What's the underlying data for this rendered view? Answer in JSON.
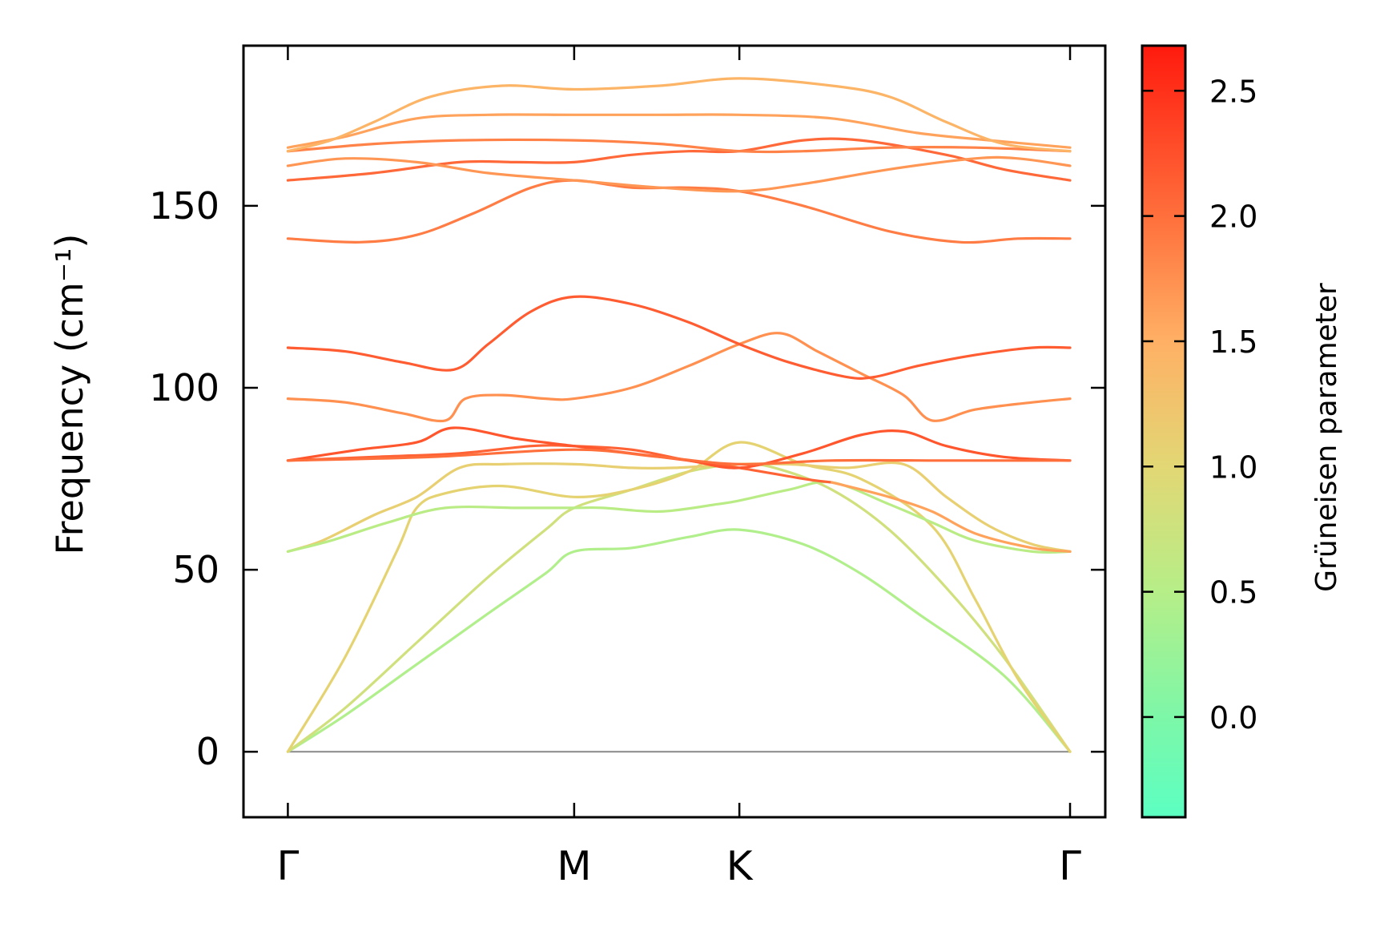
{
  "chart_data": {
    "type": "line",
    "title": "",
    "xlabel": "",
    "ylabel": "Frequency (cm⁻¹)",
    "ylim": [
      -18,
      194
    ],
    "grid": false,
    "x_ticks": [
      {
        "label": "Γ",
        "pos": 0.0
      },
      {
        "label": "M",
        "pos": 1.0
      },
      {
        "label": "K",
        "pos": 1.577
      },
      {
        "label": "Γ",
        "pos": 2.732
      }
    ],
    "y_ticks": [
      0,
      50,
      100,
      150
    ],
    "colorbar": {
      "label": "Grüneisen parameter",
      "range": [
        -0.4,
        2.68
      ],
      "ticks": [
        0.0,
        0.5,
        1.0,
        1.5,
        2.0,
        2.5
      ],
      "tick_labels": [
        "0.0",
        "0.5",
        "1.0",
        "1.5",
        "2.0",
        "2.5"
      ],
      "colormap": [
        {
          "value": -0.4,
          "color": "#5cffc2"
        },
        {
          "value": 0.0,
          "color": "#7df7a8"
        },
        {
          "value": 0.5,
          "color": "#b6ee88"
        },
        {
          "value": 1.0,
          "color": "#e2d774"
        },
        {
          "value": 1.5,
          "color": "#ffb064"
        },
        {
          "value": 2.0,
          "color": "#ff6f3c"
        },
        {
          "value": 2.68,
          "color": "#ff1a0e"
        }
      ]
    },
    "series": [
      {
        "gamma": 0.45,
        "points": [
          [
            0.0,
            0
          ],
          [
            0.2,
            10
          ],
          [
            0.45,
            24
          ],
          [
            0.7,
            38
          ],
          [
            0.9,
            49
          ],
          [
            1.0,
            55
          ],
          [
            1.2,
            56
          ],
          [
            1.4,
            59
          ],
          [
            1.577,
            61
          ],
          [
            1.8,
            57
          ],
          [
            2.0,
            49
          ],
          [
            2.2,
            38
          ],
          [
            2.5,
            21
          ],
          [
            2.732,
            0
          ]
        ]
      },
      {
        "gamma": 0.8,
        "points": [
          [
            0.0,
            0
          ],
          [
            0.2,
            12
          ],
          [
            0.45,
            30
          ],
          [
            0.7,
            48
          ],
          [
            0.9,
            61
          ],
          [
            1.0,
            67
          ],
          [
            1.2,
            72
          ],
          [
            1.4,
            77
          ],
          [
            1.577,
            79
          ],
          [
            1.7,
            78
          ],
          [
            1.9,
            72
          ],
          [
            2.1,
            61
          ],
          [
            2.3,
            45
          ],
          [
            2.5,
            26
          ],
          [
            2.732,
            0
          ]
        ]
      },
      {
        "gamma": 1.05,
        "points": [
          [
            0.0,
            0
          ],
          [
            0.2,
            26
          ],
          [
            0.38,
            55
          ],
          [
            0.45,
            67
          ],
          [
            0.55,
            71
          ],
          [
            0.75,
            73
          ],
          [
            1.0,
            70
          ],
          [
            1.2,
            72
          ],
          [
            1.4,
            77
          ],
          [
            1.577,
            85
          ],
          [
            1.8,
            79
          ],
          [
            2.0,
            75
          ],
          [
            2.25,
            62
          ],
          [
            2.4,
            42
          ],
          [
            2.55,
            20
          ],
          [
            2.732,
            0
          ]
        ]
      },
      {
        "gamma": 1.1,
        "points": [
          [
            0.0,
            55
          ],
          [
            0.12,
            58
          ],
          [
            0.3,
            65
          ],
          [
            0.45,
            70
          ],
          [
            0.6,
            78
          ],
          [
            0.75,
            79
          ],
          [
            1.0,
            79
          ],
          [
            1.2,
            78
          ],
          [
            1.35,
            78
          ],
          [
            1.577,
            79
          ],
          [
            1.75,
            79
          ],
          [
            1.95,
            78
          ],
          [
            2.15,
            79
          ],
          [
            2.3,
            70
          ],
          [
            2.45,
            62
          ],
          [
            2.6,
            57
          ],
          [
            2.732,
            55
          ]
        ]
      },
      {
        "gamma": 0.55,
        "points": [
          [
            0.0,
            55
          ],
          [
            0.15,
            58
          ],
          [
            0.35,
            63
          ],
          [
            0.55,
            67
          ],
          [
            0.8,
            67
          ],
          [
            1.0,
            67
          ],
          [
            1.1,
            67
          ],
          [
            1.3,
            66
          ],
          [
            1.5,
            68
          ],
          [
            1.577,
            69
          ],
          [
            1.75,
            72
          ],
          [
            1.9,
            74
          ],
          [
            2.1,
            68
          ],
          [
            2.25,
            63
          ],
          [
            2.4,
            58
          ],
          [
            2.6,
            55
          ],
          [
            2.732,
            55
          ]
        ]
      },
      {
        "gamma": 2.1,
        "points": [
          [
            0.0,
            80
          ],
          [
            0.3,
            81
          ],
          [
            0.6,
            82
          ],
          [
            0.85,
            84
          ],
          [
            1.0,
            84
          ],
          [
            1.2,
            83
          ],
          [
            1.4,
            80
          ],
          [
            1.577,
            78
          ],
          [
            1.8,
            75
          ],
          [
            1.9,
            74
          ]
        ]
      },
      {
        "gamma": 1.6,
        "points": [
          [
            1.9,
            74
          ],
          [
            2.1,
            70
          ],
          [
            2.25,
            66
          ],
          [
            2.4,
            60
          ],
          [
            2.6,
            56
          ],
          [
            2.732,
            55
          ]
        ]
      },
      {
        "gamma": 2.2,
        "points": [
          [
            0.0,
            80
          ],
          [
            0.25,
            83
          ],
          [
            0.45,
            85
          ],
          [
            0.58,
            89
          ],
          [
            0.8,
            86
          ],
          [
            1.0,
            84
          ],
          [
            1.2,
            82
          ],
          [
            1.4,
            80
          ],
          [
            1.577,
            78
          ],
          [
            1.8,
            82
          ],
          [
            2.0,
            87
          ],
          [
            2.15,
            88
          ],
          [
            2.3,
            84
          ],
          [
            2.5,
            81
          ],
          [
            2.732,
            80
          ]
        ]
      },
      {
        "gamma": 2.0,
        "points": [
          [
            0.0,
            80
          ],
          [
            0.5,
            81
          ],
          [
            1.0,
            83
          ],
          [
            1.3,
            81
          ],
          [
            1.577,
            79
          ],
          [
            1.9,
            80
          ],
          [
            2.3,
            80
          ],
          [
            2.732,
            80
          ]
        ]
      },
      {
        "gamma": 1.75,
        "points": [
          [
            0.0,
            97
          ],
          [
            0.2,
            96
          ],
          [
            0.4,
            93
          ],
          [
            0.55,
            91
          ],
          [
            0.62,
            97
          ],
          [
            0.75,
            98
          ],
          [
            0.9,
            97
          ],
          [
            1.0,
            97
          ],
          [
            1.2,
            100
          ],
          [
            1.4,
            106
          ],
          [
            1.577,
            112
          ],
          [
            1.72,
            115
          ],
          [
            1.85,
            110
          ],
          [
            2.0,
            104
          ],
          [
            2.15,
            98
          ],
          [
            2.25,
            91
          ],
          [
            2.4,
            94
          ],
          [
            2.6,
            96
          ],
          [
            2.732,
            97
          ]
        ]
      },
      {
        "gamma": 2.15,
        "points": [
          [
            0.0,
            111
          ],
          [
            0.2,
            110
          ],
          [
            0.4,
            107
          ],
          [
            0.58,
            105
          ],
          [
            0.7,
            112
          ],
          [
            0.85,
            121
          ],
          [
            1.0,
            125
          ],
          [
            1.2,
            123
          ],
          [
            1.4,
            118
          ],
          [
            1.577,
            112
          ],
          [
            1.75,
            107
          ],
          [
            1.95,
            103
          ],
          [
            2.05,
            103
          ],
          [
            2.2,
            106
          ],
          [
            2.4,
            109
          ],
          [
            2.6,
            111
          ],
          [
            2.732,
            111
          ]
        ]
      },
      {
        "gamma": 1.9,
        "points": [
          [
            0.0,
            141
          ],
          [
            0.25,
            140
          ],
          [
            0.45,
            142
          ],
          [
            0.65,
            148
          ],
          [
            0.85,
            155
          ],
          [
            1.0,
            157
          ],
          [
            1.2,
            155
          ],
          [
            1.4,
            155
          ],
          [
            1.577,
            154
          ],
          [
            1.8,
            150
          ],
          [
            2.1,
            143
          ],
          [
            2.35,
            140
          ],
          [
            2.55,
            141
          ],
          [
            2.732,
            141
          ]
        ]
      },
      {
        "gamma": 2.05,
        "points": [
          [
            0.0,
            157
          ],
          [
            0.3,
            159
          ],
          [
            0.6,
            162
          ],
          [
            0.8,
            162
          ],
          [
            1.0,
            162
          ],
          [
            1.2,
            164
          ],
          [
            1.4,
            165
          ],
          [
            1.577,
            165
          ],
          [
            1.8,
            168
          ],
          [
            2.0,
            168
          ],
          [
            2.3,
            164
          ],
          [
            2.5,
            160
          ],
          [
            2.732,
            157
          ]
        ]
      },
      {
        "gamma": 1.7,
        "points": [
          [
            0.0,
            161
          ],
          [
            0.2,
            163
          ],
          [
            0.45,
            162
          ],
          [
            0.7,
            159
          ],
          [
            1.0,
            157
          ],
          [
            1.3,
            155
          ],
          [
            1.577,
            154
          ],
          [
            1.8,
            156
          ],
          [
            2.1,
            160
          ],
          [
            2.4,
            163
          ],
          [
            2.55,
            163
          ],
          [
            2.732,
            161
          ]
        ]
      },
      {
        "gamma": 1.85,
        "points": [
          [
            0.0,
            165
          ],
          [
            0.3,
            167
          ],
          [
            0.6,
            168
          ],
          [
            1.0,
            168
          ],
          [
            1.3,
            167
          ],
          [
            1.577,
            165
          ],
          [
            1.8,
            165
          ],
          [
            2.1,
            166
          ],
          [
            2.4,
            166
          ],
          [
            2.732,
            165
          ]
        ]
      },
      {
        "gamma": 1.6,
        "points": [
          [
            0.0,
            166
          ],
          [
            0.2,
            169
          ],
          [
            0.45,
            174
          ],
          [
            0.7,
            175
          ],
          [
            1.0,
            175
          ],
          [
            1.3,
            175
          ],
          [
            1.577,
            175
          ],
          [
            1.9,
            174
          ],
          [
            2.2,
            170
          ],
          [
            2.45,
            168
          ],
          [
            2.732,
            166
          ]
        ]
      },
      {
        "gamma": 1.45,
        "points": [
          [
            0.0,
            165
          ],
          [
            0.15,
            168
          ],
          [
            0.3,
            173
          ],
          [
            0.5,
            180
          ],
          [
            0.75,
            183
          ],
          [
            1.0,
            182
          ],
          [
            1.3,
            183
          ],
          [
            1.577,
            185
          ],
          [
            1.9,
            183
          ],
          [
            2.1,
            180
          ],
          [
            2.3,
            173
          ],
          [
            2.5,
            167
          ],
          [
            2.732,
            165
          ]
        ]
      }
    ]
  }
}
